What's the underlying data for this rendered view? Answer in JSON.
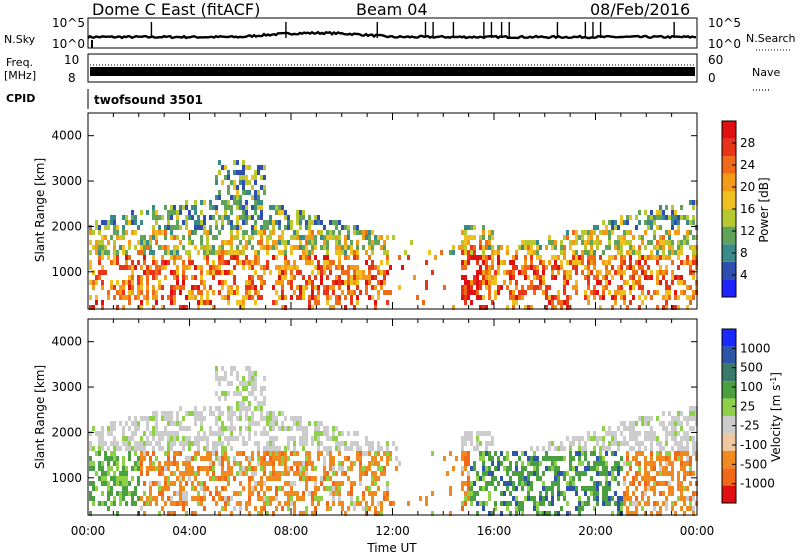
{
  "header": {
    "station": "Dome C East (fitACF)",
    "beam": "Beam 04",
    "date": "08/Feb/2016"
  },
  "top_panels": {
    "nsky_label": "N.Sky",
    "nsky_ticks": [
      "10^5",
      "10^0"
    ],
    "freq_label_1": "Freq.",
    "freq_label_2": "[MHz]",
    "freq_ticks": [
      "10",
      "8"
    ],
    "cpid_label": "CPID",
    "cpid_value": "twofsound 3501",
    "right_nsearch_label": "N.Search",
    "right_nsearch_ticks": [
      "10^5",
      "10^0"
    ],
    "right_nave_label": "Nave",
    "right_nave_ticks": [
      "60",
      "0"
    ]
  },
  "chart_data": [
    {
      "type": "heatmap",
      "name_hint": "power",
      "ylabel": "Slant Range [km]",
      "xlabel": "",
      "yticks": [
        "1000",
        "2000",
        "3000",
        "4000"
      ],
      "xticks": [],
      "ylim": [
        180,
        4500
      ],
      "colorbar_label": "Power [dB]",
      "colorbar_ticks": [
        "4",
        "8",
        "12",
        "16",
        "20",
        "24",
        "28"
      ],
      "colorbar_colors": [
        "#1f22ff",
        "#2e4fb0",
        "#3a8a8a",
        "#5fa45a",
        "#b8c830",
        "#f0c020",
        "#f39a18",
        "#f06a18",
        "#e83418",
        "#e01010"
      ],
      "intensity_by_hour": [
        [
          0,
          0.35
        ],
        [
          2,
          0.55
        ],
        [
          4,
          0.45
        ],
        [
          6,
          0.5
        ],
        [
          8,
          0.6
        ],
        [
          10,
          0.55
        ],
        [
          11,
          0.65
        ],
        [
          12,
          0.3
        ],
        [
          13,
          0.2
        ],
        [
          14,
          0.35
        ],
        [
          15,
          0.7
        ],
        [
          16,
          0.55
        ],
        [
          18,
          0.55
        ],
        [
          20,
          0.5
        ],
        [
          22,
          0.6
        ],
        [
          24,
          0.5
        ]
      ]
    },
    {
      "type": "heatmap",
      "name_hint": "velocity",
      "ylabel": "Slant Range [km]",
      "xlabel": "Time UT",
      "yticks": [
        "1000",
        "2000",
        "3000",
        "4000"
      ],
      "xticks": [
        "00:00",
        "04:00",
        "08:00",
        "12:00",
        "16:00",
        "20:00",
        "00:00"
      ],
      "ylim": [
        180,
        4500
      ],
      "colorbar_label": "Velocity [m s",
      "colorbar_label_sup": "-1",
      "colorbar_label_end": "]",
      "colorbar_ticks": [
        "1000",
        "500",
        "100",
        "25",
        "-25",
        "-100",
        "-500",
        "-1000"
      ],
      "colorbar_colors": [
        "#1a2aff",
        "#2e56a8",
        "#3a7a6a",
        "#4aa040",
        "#8ed048",
        "#cccccc",
        "#f0c8a0",
        "#f08a20",
        "#f06818",
        "#e01010"
      ]
    }
  ]
}
